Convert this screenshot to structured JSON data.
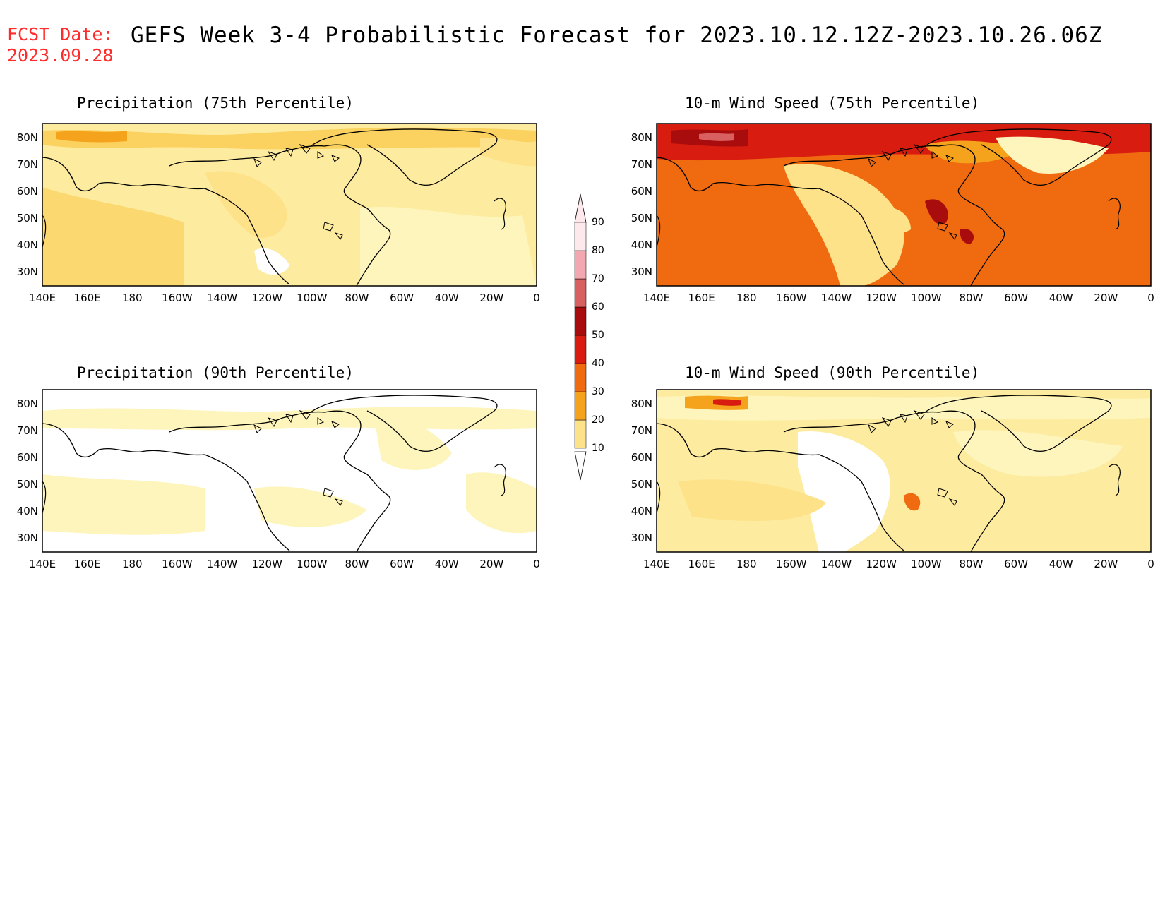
{
  "header": {
    "fcst_label": "FCST Date:",
    "fcst_date": "2023.09.28",
    "title": "GEFS Week 3-4 Probabilistic Forecast for 2023.10.12.12Z-2023.10.26.06Z"
  },
  "panels": [
    {
      "id": "precip-75",
      "title": "Precipitation (75th Percentile)"
    },
    {
      "id": "wind-75",
      "title": "10-m Wind Speed (75th Percentile)"
    },
    {
      "id": "precip-90",
      "title": "Precipitation (90th Percentile)"
    },
    {
      "id": "wind-90",
      "title": "10-m Wind Speed (90th Percentile)"
    }
  ],
  "axes": {
    "lon_labels": [
      "140E",
      "160E",
      "180",
      "160W",
      "140W",
      "120W",
      "100W",
      "80W",
      "60W",
      "40W",
      "20W",
      "0"
    ],
    "lat_labels": [
      "80N",
      "70N",
      "60N",
      "50N",
      "40N",
      "30N"
    ]
  },
  "colorbar": {
    "levels": [
      "10",
      "20",
      "30",
      "40",
      "50",
      "60",
      "70",
      "80",
      "90"
    ],
    "colors": [
      "#fdf5bb",
      "#fde28a",
      "#f5a21c",
      "#f06a10",
      "#d81c10",
      "#a80c0c",
      "#d86060",
      "#f3a7b0",
      "#fde8ec"
    ]
  }
}
